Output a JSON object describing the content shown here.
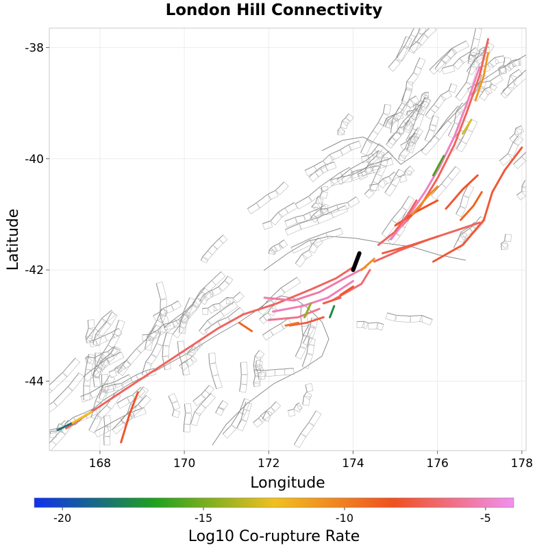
{
  "title": "London Hill Connectivity",
  "chart_data": {
    "type": "map",
    "title": "London Hill Connectivity",
    "xlabel": "Longitude",
    "ylabel": "Latitude",
    "xlim": [
      166.8,
      178.1
    ],
    "ylim": [
      -45.25,
      -37.65
    ],
    "x_ticks": [
      168,
      170,
      172,
      174,
      176,
      178
    ],
    "y_ticks": [
      -38,
      -40,
      -42,
      -44
    ],
    "x_tick_labels": [
      "168",
      "170",
      "172",
      "174",
      "176",
      "178"
    ],
    "y_tick_labels": [
      "-38",
      "-40",
      "-42",
      "-44"
    ],
    "grid": true,
    "colorbar": {
      "label": "Log10 Co-rupture Rate",
      "range": [
        -21,
        -4
      ],
      "ticks": [
        -20,
        -15,
        -10,
        -5
      ],
      "tick_labels": [
        "-20",
        "-15",
        "-10",
        "-5"
      ],
      "colors": [
        "#1030f0",
        "#20a020",
        "#f0c020",
        "#f05020",
        "#f090f0"
      ]
    },
    "source_fault": {
      "name": "London Hill",
      "color": "#000000",
      "points": [
        [
          174.15,
          -41.7
        ],
        [
          174.0,
          -42.0
        ]
      ]
    },
    "ruptures": [
      {
        "rate": -7.0,
        "points": [
          [
            167.2,
            -44.85
          ],
          [
            167.8,
            -44.55
          ],
          [
            168.4,
            -44.25
          ],
          [
            169.2,
            -43.85
          ],
          [
            170.0,
            -43.45
          ],
          [
            170.8,
            -43.05
          ],
          [
            171.4,
            -42.8
          ],
          [
            172.2,
            -42.6
          ],
          [
            173.0,
            -42.35
          ],
          [
            173.6,
            -42.15
          ],
          [
            174.0,
            -41.95
          ]
        ]
      },
      {
        "rate": -18.5,
        "points": [
          [
            167.0,
            -44.88
          ],
          [
            167.35,
            -44.75
          ]
        ]
      },
      {
        "rate": -12.5,
        "points": [
          [
            167.35,
            -44.75
          ],
          [
            167.8,
            -44.55
          ]
        ]
      },
      {
        "rate": -8.0,
        "points": [
          [
            168.9,
            -44.2
          ],
          [
            168.7,
            -44.6
          ],
          [
            168.5,
            -45.1
          ]
        ]
      },
      {
        "rate": -5.5,
        "points": [
          [
            171.9,
            -42.5
          ],
          [
            172.6,
            -42.55
          ],
          [
            173.2,
            -42.4
          ],
          [
            173.8,
            -42.15
          ],
          [
            174.3,
            -41.95
          ]
        ]
      },
      {
        "rate": -5.2,
        "points": [
          [
            172.1,
            -42.75
          ],
          [
            172.8,
            -42.65
          ],
          [
            173.4,
            -42.5
          ],
          [
            174.0,
            -42.2
          ]
        ]
      },
      {
        "rate": -6.0,
        "points": [
          [
            172.0,
            -42.9
          ],
          [
            172.7,
            -42.85
          ],
          [
            173.2,
            -42.7
          ]
        ]
      },
      {
        "rate": -7.5,
        "points": [
          [
            172.5,
            -43.0
          ],
          [
            172.9,
            -42.95
          ],
          [
            173.3,
            -42.85
          ]
        ]
      },
      {
        "rate": -14.5,
        "points": [
          [
            173.0,
            -42.6
          ],
          [
            172.85,
            -42.85
          ]
        ]
      },
      {
        "rate": -17.5,
        "points": [
          [
            173.55,
            -42.65
          ],
          [
            173.45,
            -42.85
          ]
        ]
      },
      {
        "rate": -6.5,
        "points": [
          [
            173.5,
            -42.55
          ],
          [
            174.2,
            -42.25
          ],
          [
            174.4,
            -42.0
          ]
        ]
      },
      {
        "rate": -8.5,
        "points": [
          [
            173.7,
            -42.45
          ],
          [
            174.0,
            -42.3
          ]
        ]
      },
      {
        "rate": -10.5,
        "points": [
          [
            174.2,
            -42.0
          ],
          [
            174.5,
            -41.8
          ]
        ]
      },
      {
        "rate": -7.0,
        "points": [
          [
            174.5,
            -41.85
          ],
          [
            175.1,
            -41.65
          ],
          [
            175.8,
            -41.45
          ],
          [
            176.4,
            -41.3
          ],
          [
            177.0,
            -41.15
          ]
        ]
      },
      {
        "rate": -7.5,
        "points": [
          [
            174.7,
            -41.7
          ],
          [
            175.4,
            -41.55
          ],
          [
            176.0,
            -41.4
          ]
        ]
      },
      {
        "rate": -7.0,
        "points": [
          [
            174.6,
            -41.55
          ],
          [
            175.1,
            -41.25
          ],
          [
            175.6,
            -40.85
          ],
          [
            176.0,
            -40.35
          ],
          [
            176.4,
            -39.75
          ],
          [
            176.7,
            -39.15
          ],
          [
            177.0,
            -38.5
          ],
          [
            177.2,
            -37.85
          ]
        ]
      },
      {
        "rate": -5.0,
        "points": [
          [
            174.9,
            -41.45
          ],
          [
            175.3,
            -41.05
          ],
          [
            175.7,
            -40.6
          ],
          [
            176.05,
            -40.15
          ],
          [
            176.4,
            -39.6
          ],
          [
            176.7,
            -39.0
          ],
          [
            177.0,
            -38.35
          ]
        ]
      },
      {
        "rate": -7.8,
        "points": [
          [
            175.9,
            -41.85
          ],
          [
            176.6,
            -41.55
          ],
          [
            177.1,
            -41.1
          ],
          [
            177.3,
            -40.6
          ],
          [
            177.6,
            -40.2
          ],
          [
            178.0,
            -39.8
          ]
        ]
      },
      {
        "rate": -8.3,
        "points": [
          [
            175.0,
            -41.2
          ],
          [
            175.5,
            -40.95
          ],
          [
            176.0,
            -40.75
          ]
        ]
      },
      {
        "rate": -8.0,
        "points": [
          [
            176.2,
            -40.9
          ],
          [
            176.6,
            -40.55
          ],
          [
            176.95,
            -40.3
          ]
        ]
      },
      {
        "rate": -9.0,
        "points": [
          [
            176.55,
            -41.1
          ],
          [
            176.85,
            -40.85
          ],
          [
            177.05,
            -40.6
          ]
        ]
      },
      {
        "rate": -10.5,
        "points": [
          [
            175.4,
            -41.0
          ],
          [
            175.8,
            -40.65
          ],
          [
            176.0,
            -40.5
          ]
        ]
      },
      {
        "rate": -7.0,
        "points": [
          [
            175.0,
            -41.3
          ],
          [
            175.3,
            -41.0
          ],
          [
            175.5,
            -40.75
          ]
        ]
      },
      {
        "rate": -16.0,
        "points": [
          [
            175.9,
            -40.3
          ],
          [
            176.15,
            -39.95
          ]
        ]
      },
      {
        "rate": -13.0,
        "points": [
          [
            176.6,
            -39.55
          ],
          [
            176.8,
            -39.3
          ]
        ]
      },
      {
        "rate": -11.0,
        "points": [
          [
            176.9,
            -38.95
          ],
          [
            177.1,
            -38.5
          ],
          [
            177.2,
            -38.1
          ]
        ]
      },
      {
        "rate": -9.5,
        "points": [
          [
            172.4,
            -43.0
          ],
          [
            172.7,
            -42.95
          ]
        ]
      },
      {
        "rate": -7.5,
        "points": [
          [
            173.3,
            -42.6
          ],
          [
            173.7,
            -42.5
          ]
        ]
      },
      {
        "rate": -9.0,
        "points": [
          [
            171.3,
            -42.95
          ],
          [
            171.6,
            -43.1
          ]
        ]
      }
    ]
  }
}
